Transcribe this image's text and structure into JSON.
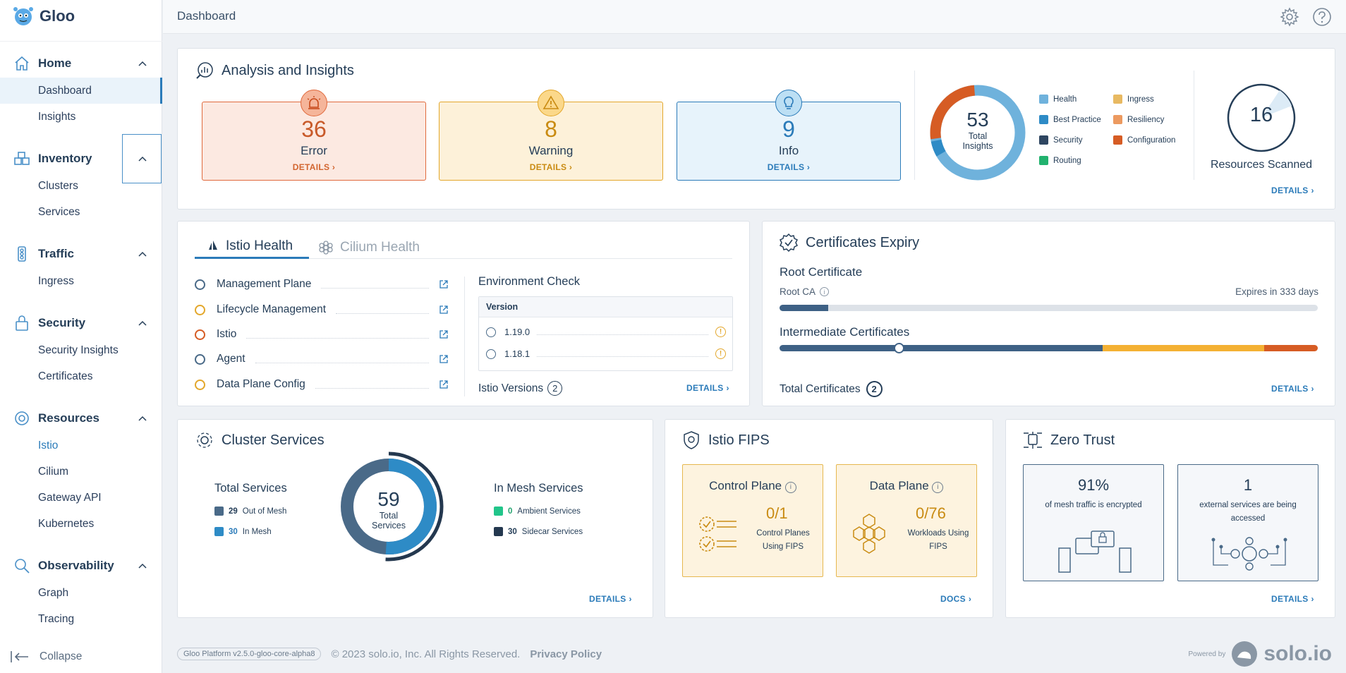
{
  "app": {
    "name": "Gloo"
  },
  "sidebar": {
    "sections": [
      {
        "label": "Home",
        "items": [
          "Dashboard",
          "Insights"
        ]
      },
      {
        "label": "Inventory",
        "items": [
          "Clusters",
          "Services"
        ]
      },
      {
        "label": "Traffic",
        "items": [
          "Ingress"
        ]
      },
      {
        "label": "Security",
        "items": [
          "Security Insights",
          "Certificates"
        ]
      },
      {
        "label": "Resources",
        "items": [
          "Istio",
          "Cilium",
          "Gateway API",
          "Kubernetes"
        ]
      },
      {
        "label": "Observability",
        "items": [
          "Graph",
          "Tracing"
        ]
      }
    ],
    "collapse_label": "Collapse"
  },
  "header": {
    "title": "Dashboard"
  },
  "analysis": {
    "title": "Analysis and Insights",
    "error": {
      "count": "36",
      "label": "Error",
      "details": "DETAILS"
    },
    "warning": {
      "count": "8",
      "label": "Warning",
      "details": "DETAILS"
    },
    "info": {
      "count": "9",
      "label": "Info",
      "details": "DETAILS"
    },
    "total": {
      "count": "53",
      "label_line1": "Total",
      "label_line2": "Insights"
    },
    "legend": [
      "Health",
      "Best Practice",
      "Security",
      "Routing",
      "Ingress",
      "Resiliency",
      "Configuration"
    ],
    "scanned": {
      "count": "16",
      "label": "Resources Scanned"
    },
    "details": "DETAILS"
  },
  "health": {
    "tabs": [
      "Istio Health",
      "Cilium Health"
    ],
    "rows": [
      "Management Plane",
      "Lifecycle Management",
      "Istio",
      "Agent",
      "Data Plane Config"
    ],
    "env_title": "Environment Check",
    "version_header": "Version",
    "versions": [
      "1.19.0",
      "1.18.1"
    ],
    "istio_versions_label": "Istio Versions",
    "istio_versions_count": "2",
    "details": "DETAILS"
  },
  "certs": {
    "title": "Certificates Expiry",
    "root_title": "Root Certificate",
    "root_ca": "Root CA",
    "expires": "Expires in 333 days",
    "root_fill": 0.09,
    "intermediate_title": "Intermediate Certificates",
    "total_label": "Total Certificates",
    "total_count": "2",
    "details": "DETAILS"
  },
  "cluster_services": {
    "title": "Cluster Services",
    "total_title": "Total Services",
    "out_of_mesh": {
      "count": "29",
      "label": "Out of Mesh"
    },
    "in_mesh": {
      "count": "30",
      "label": "In Mesh"
    },
    "total_count": "59",
    "total_line1": "Total",
    "total_line2": "Services",
    "in_mesh_title": "In Mesh Services",
    "ambient": {
      "count": "0",
      "label": "Ambient Services"
    },
    "sidecar": {
      "count": "30",
      "label": "Sidecar Services"
    },
    "details": "DETAILS"
  },
  "fips": {
    "title": "Istio FIPS",
    "control": {
      "title": "Control Plane",
      "value": "0/1",
      "line1": "Control Planes",
      "line2": "Using FIPS"
    },
    "data": {
      "title": "Data Plane",
      "value": "0/76",
      "line1": "Workloads Using",
      "line2": "FIPS"
    },
    "docs": "DOCS"
  },
  "zero_trust": {
    "title": "Zero Trust",
    "encrypted": {
      "value": "91%",
      "label": "of mesh traffic is encrypted"
    },
    "external": {
      "value": "1",
      "label": "external services are being accessed"
    },
    "details": "DETAILS"
  },
  "footer": {
    "version": "Gloo Platform v2.5.0-gloo-core-alpha8",
    "copyright": "© 2023 solo.io, Inc. All Rights Reserved.",
    "privacy": "Privacy Policy",
    "powered_by": "Powered by",
    "brand": "solo.io"
  },
  "colors": {
    "accent": "#2b7bb9",
    "error": "#e06a3d",
    "warning": "#e3a72b",
    "health": "#6fb2dc",
    "best_practice": "#2e8bc6",
    "security": "#2e4661",
    "routing": "#21b26e",
    "ingress": "#e8b962",
    "resiliency": "#ec9a60",
    "configuration": "#d65c24"
  }
}
